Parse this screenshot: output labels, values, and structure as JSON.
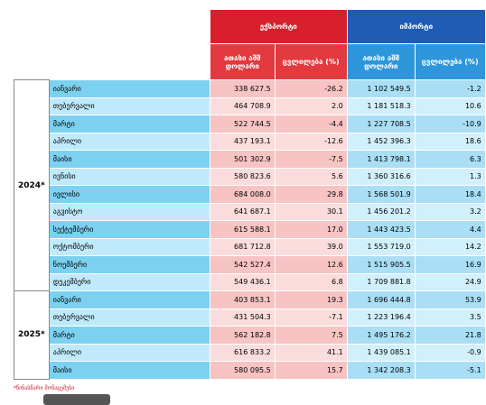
{
  "header": {
    "export": "ექსპორტი",
    "import": "იმპორტი",
    "export_value": "ათასი აშშ დოლარი",
    "export_change": "ცვლილება (%)",
    "import_value": "ათასი აშშ დოლარი",
    "import_change": "ცვლილება (%)"
  },
  "groups": [
    {
      "year": "2024*",
      "rows": [
        [
          "იანვარი",
          "338 627.5",
          "-26.2",
          "1 102 549.5",
          "-1.2"
        ],
        [
          "თებერვალი",
          "464 708.9",
          "2.0",
          "1 181 518.3",
          "10.6"
        ],
        [
          "მარტი",
          "522 744.5",
          "-4.4",
          "1 227 708.5",
          "-10.9"
        ],
        [
          "აპრილი",
          "437 193.1",
          "-12.6",
          "1 452 396.3",
          "18.6"
        ],
        [
          "მაისი",
          "501 302.9",
          "-7.5",
          "1 413 798.1",
          "6.3"
        ],
        [
          "ივნისი",
          "580 823.6",
          "5.6",
          "1 360 316.6",
          "1.3"
        ],
        [
          "ივლისი",
          "684 008.0",
          "29.8",
          "1 568 501.9",
          "18.4"
        ],
        [
          "აგვისტო",
          "641 687.1",
          "30.1",
          "1 456 201.2",
          "3.2"
        ],
        [
          "სექტემბერი",
          "615 588.1",
          "17.0",
          "1 443 423.5",
          "4.4"
        ],
        [
          "ოქტომბერი",
          "681 712.8",
          "39.0",
          "1 553 719.0",
          "14.2"
        ],
        [
          "ნოემბერი",
          "542 527.4",
          "12.6",
          "1 515 905.5",
          "16.9"
        ],
        [
          "დეკემბერი",
          "549 436.1",
          "6.8",
          "1 709 881.8",
          "24.9"
        ]
      ]
    },
    {
      "year": "2025*",
      "rows": [
        [
          "იანვარი",
          "403 853.1",
          "19.3",
          "1 696 444.8",
          "53.9"
        ],
        [
          "თებერვალი",
          "431 504.3",
          "-7.1",
          "1 223 196.4",
          "3.5"
        ],
        [
          "მარტი",
          "562 182.8",
          "7.5",
          "1 495 176.2",
          "21.8"
        ],
        [
          "აპრილი",
          "616 833.2",
          "41.1",
          "1 439 085.1",
          "-0.9"
        ],
        [
          "მაისი",
          "580 095.5",
          "15.7",
          "1 342 208.3",
          "-5.1"
        ]
      ]
    }
  ],
  "footnote": "*წინასწარი მონაცემები"
}
